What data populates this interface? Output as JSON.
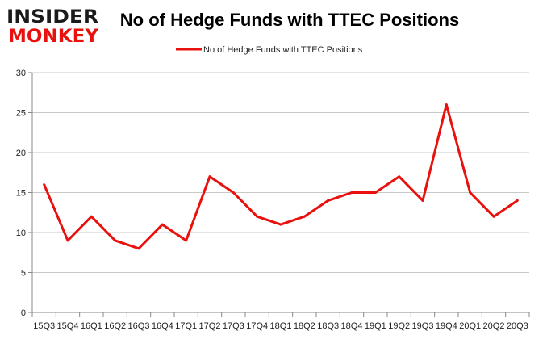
{
  "logo": {
    "line1": "INSIDER",
    "line2": "MONKEY"
  },
  "colors": {
    "series": "#e8110d",
    "grid": "#c8c8c8",
    "axis": "#888888",
    "logo_dark": "#1b1b1b",
    "logo_red": "#e8110d"
  },
  "chart_data": {
    "type": "line",
    "title": "No of Hedge Funds with TTEC Positions",
    "xlabel": "",
    "ylabel": "",
    "ylim": [
      0,
      30
    ],
    "yticks": [
      0,
      5,
      10,
      15,
      20,
      25,
      30
    ],
    "grid": true,
    "legend_position": "top-center",
    "categories": [
      "15Q3",
      "15Q4",
      "16Q1",
      "16Q2",
      "16Q3",
      "16Q4",
      "17Q1",
      "17Q2",
      "17Q3",
      "17Q4",
      "18Q1",
      "18Q2",
      "18Q3",
      "18Q4",
      "19Q1",
      "19Q2",
      "19Q3",
      "19Q4",
      "20Q1",
      "20Q2",
      "20Q3"
    ],
    "series": [
      {
        "name": "No of Hedge Funds with TTEC Positions",
        "values": [
          16,
          9,
          12,
          9,
          8,
          11,
          9,
          17,
          15,
          12,
          11,
          12,
          14,
          15,
          15,
          17,
          14,
          26,
          15,
          12,
          14
        ]
      }
    ]
  }
}
